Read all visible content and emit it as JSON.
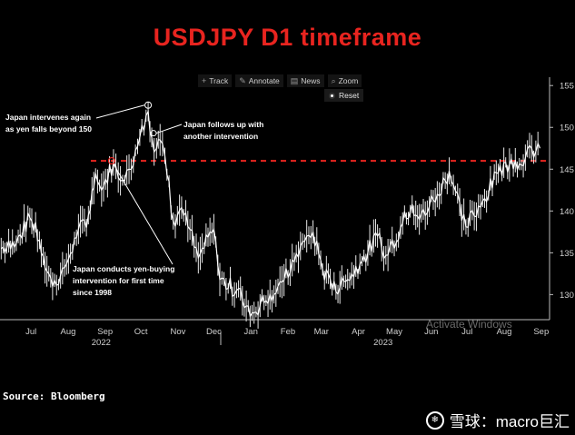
{
  "title": "USDJPY D1 timeframe",
  "toolbar": [
    {
      "label": "Track",
      "icon": "crosshair-icon",
      "glyph": "+"
    },
    {
      "label": "Annotate",
      "icon": "pencil-icon",
      "glyph": "✎"
    },
    {
      "label": "News",
      "icon": "news-icon",
      "glyph": "▤"
    },
    {
      "label": "Zoom",
      "icon": "magnifier-icon",
      "glyph": "⌕"
    }
  ],
  "reset_label": "Reset",
  "annotations": {
    "intervene": "Japan intervenes again\nas yen falls beyond 150",
    "followup": "Japan follows up with\nanother intervention",
    "first": "Japan conducts yen-buying\nintervention for first time\nsince 1998"
  },
  "source": "Source:  Bloomberg",
  "watermark": "Activate Windows",
  "brand": {
    "text": "雪球：macro巨汇",
    "icon": "snowball-logo-icon"
  },
  "colors": {
    "title": "#e8241f",
    "line": "#ffffff",
    "threshold": "#e8241f",
    "axis": "#bbbbbb"
  },
  "chart_data": {
    "type": "line",
    "title": "",
    "x_axis": {
      "months": [
        "Jul",
        "Aug",
        "Sep",
        "Oct",
        "Nov",
        "Dec",
        "Jan",
        "Feb",
        "Mar",
        "Apr",
        "May",
        "Jun",
        "Jul",
        "Aug",
        "Sep"
      ],
      "years": [
        "2022",
        "2023"
      ]
    },
    "ylim": [
      127,
      156
    ],
    "y_ticks": [
      130,
      135,
      140,
      145,
      150,
      155
    ],
    "grid": false,
    "threshold": {
      "value": 146,
      "style": "dashed",
      "color": "#e8241f"
    },
    "series": [
      {
        "values": [
          [
            "2022-06-20",
            135.5
          ],
          [
            "2022-07-01",
            135.7
          ],
          [
            "2022-07-14",
            139.2
          ],
          [
            "2022-07-22",
            136.5
          ],
          [
            "2022-08-02",
            131.0
          ],
          [
            "2022-08-12",
            133.2
          ],
          [
            "2022-08-22",
            136.8
          ],
          [
            "2022-09-01",
            139.5
          ],
          [
            "2022-09-07",
            144.5
          ],
          [
            "2022-09-12",
            142.5
          ],
          [
            "2022-09-22",
            145.8
          ],
          [
            "2022-09-26",
            144.0
          ],
          [
            "2022-10-05",
            145.0
          ],
          [
            "2022-10-14",
            148.8
          ],
          [
            "2022-10-21",
            151.9
          ],
          [
            "2022-10-24",
            148.8
          ],
          [
            "2022-10-28",
            147.5
          ],
          [
            "2022-10-31",
            148.5
          ],
          [
            "2022-11-04",
            146.6
          ],
          [
            "2022-11-11",
            138.8
          ],
          [
            "2022-11-18",
            140.4
          ],
          [
            "2022-12-02",
            134.4
          ],
          [
            "2022-12-15",
            137.8
          ],
          [
            "2022-12-20",
            131.8
          ],
          [
            "2023-01-03",
            130.5
          ],
          [
            "2023-01-16",
            127.8
          ],
          [
            "2023-01-31",
            130.0
          ],
          [
            "2023-02-10",
            131.5
          ],
          [
            "2023-02-22",
            134.9
          ],
          [
            "2023-03-08",
            137.5
          ],
          [
            "2023-03-16",
            133.0
          ],
          [
            "2023-03-24",
            130.6
          ],
          [
            "2023-04-06",
            131.8
          ],
          [
            "2023-04-18",
            134.0
          ],
          [
            "2023-05-01",
            137.0
          ],
          [
            "2023-05-08",
            134.7
          ],
          [
            "2023-05-22",
            138.5
          ],
          [
            "2023-05-30",
            140.8
          ],
          [
            "2023-06-05",
            139.0
          ],
          [
            "2023-06-20",
            142.0
          ],
          [
            "2023-06-30",
            144.8
          ],
          [
            "2023-07-14",
            138.1
          ],
          [
            "2023-07-28",
            141.2
          ],
          [
            "2023-08-10",
            144.5
          ],
          [
            "2023-08-21",
            146.2
          ],
          [
            "2023-08-31",
            145.4
          ],
          [
            "2023-09-07",
            147.5
          ],
          [
            "2023-09-14",
            147.5
          ]
        ]
      }
    ]
  }
}
